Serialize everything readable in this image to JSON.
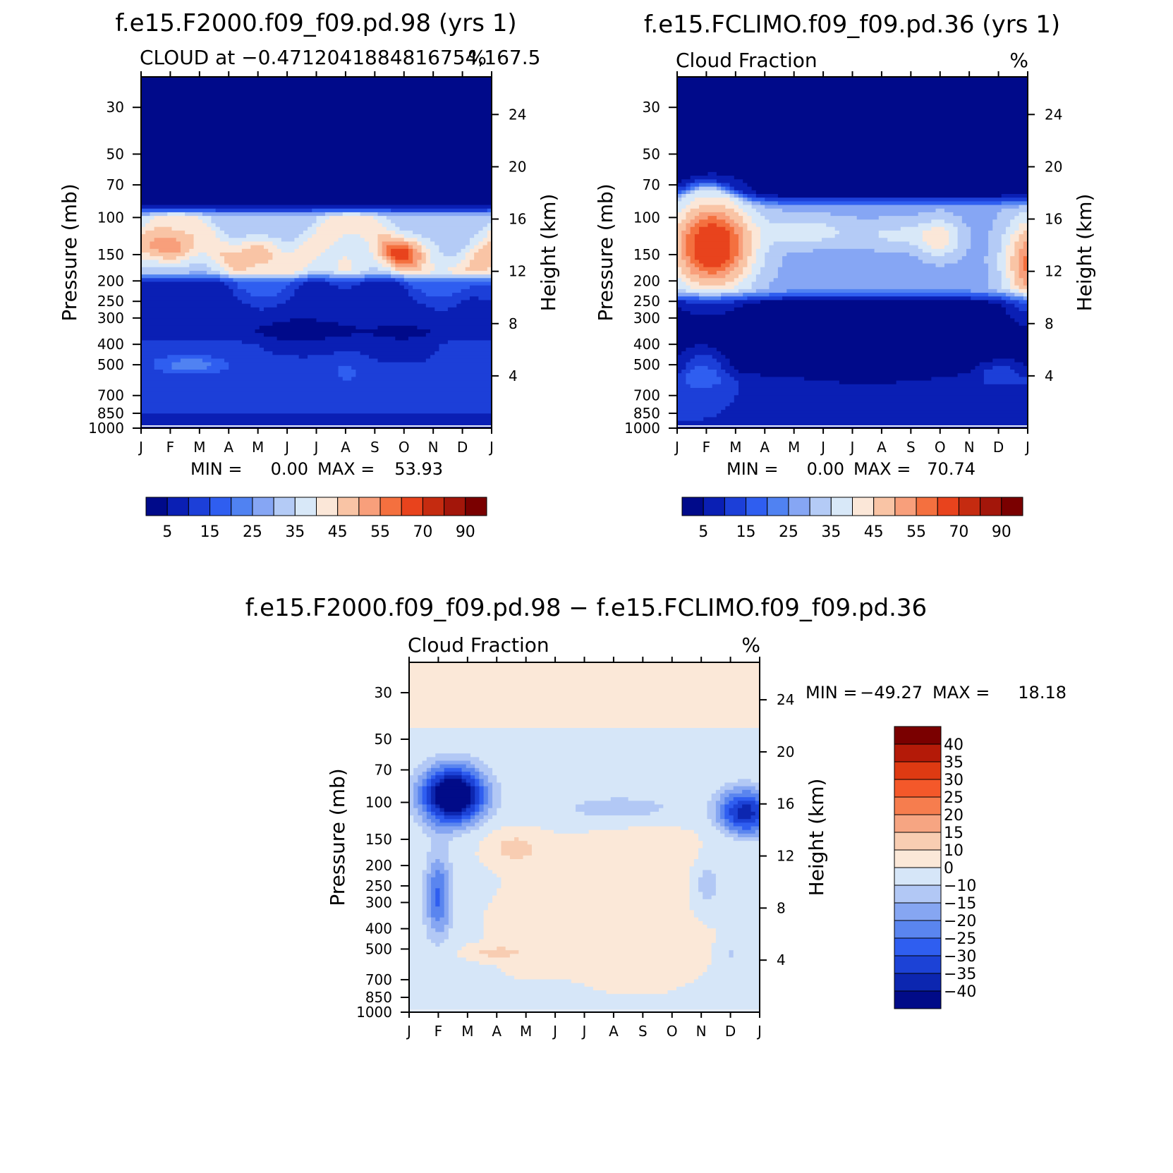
{
  "chart_data": [
    {
      "type": "heatmap",
      "title": "f.e15.F2000.f09_f09.pd.98 (yrs  1)",
      "subtitle": "CLOUD at −0.4712041884816754,167.5",
      "units": "%",
      "ylabel": "Pressure (mb)",
      "y2label": "Height (km)",
      "x": [
        "J",
        "F",
        "M",
        "A",
        "M",
        "J",
        "J",
        "A",
        "S",
        "O",
        "N",
        "D",
        "J"
      ],
      "y_ticks": [
        30,
        50,
        70,
        100,
        150,
        200,
        250,
        300,
        400,
        500,
        700,
        850,
        1000
      ],
      "y2_ticks": [
        24,
        20,
        16,
        12,
        8,
        4
      ],
      "stats": {
        "min_label": "MIN =",
        "min": "0.00",
        "max_label": "MAX =",
        "max": "53.93"
      },
      "colorbar": {
        "orientation": "horizontal",
        "labels": [
          "5",
          "15",
          "25",
          "35",
          "45",
          "55",
          "70",
          "90"
        ]
      },
      "field": "control"
    },
    {
      "type": "heatmap",
      "title": "f.e15.FCLIMO.f09_f09.pd.36 (yrs  1)",
      "subtitle": "Cloud Fraction",
      "units": "%",
      "ylabel": "Pressure (mb)",
      "y2label": "Height (km)",
      "x": [
        "J",
        "F",
        "M",
        "A",
        "M",
        "J",
        "J",
        "A",
        "S",
        "O",
        "N",
        "D",
        "J"
      ],
      "y_ticks": [
        30,
        50,
        70,
        100,
        150,
        200,
        250,
        300,
        400,
        500,
        700,
        850,
        1000
      ],
      "y2_ticks": [
        24,
        20,
        16,
        12,
        8,
        4
      ],
      "stats": {
        "min_label": "MIN =",
        "min": "0.00",
        "max_label": "MAX =",
        "max": "70.74"
      },
      "colorbar": {
        "orientation": "horizontal",
        "labels": [
          "5",
          "15",
          "25",
          "35",
          "45",
          "55",
          "70",
          "90"
        ]
      },
      "field": "climo"
    },
    {
      "type": "heatmap",
      "title": "f.e15.F2000.f09_f09.pd.98 − f.e15.FCLIMO.f09_f09.pd.36",
      "subtitle": "Cloud Fraction",
      "units": "%",
      "ylabel": "Pressure (mb)",
      "y2label": "Height (km)",
      "x": [
        "J",
        "F",
        "M",
        "A",
        "M",
        "J",
        "J",
        "A",
        "S",
        "O",
        "N",
        "D",
        "J"
      ],
      "y_ticks": [
        30,
        50,
        70,
        100,
        150,
        200,
        250,
        300,
        400,
        500,
        700,
        850,
        1000
      ],
      "y2_ticks": [
        24,
        20,
        16,
        12,
        8,
        4
      ],
      "stats": {
        "min_label": "MIN =",
        "min": "−49.27",
        "max_label": "MAX =",
        "max": "18.18"
      },
      "colorbar": {
        "orientation": "vertical",
        "labels": [
          "40",
          "35",
          "30",
          "25",
          "20",
          "15",
          "10",
          "0",
          "−10",
          "−15",
          "−20",
          "−25",
          "−30",
          "−35",
          "−40"
        ]
      },
      "field": "diff"
    }
  ],
  "palettes": {
    "abs": [
      "#000a8a",
      "#0a1fb4",
      "#1c3fd8",
      "#2f5ef0",
      "#5082f2",
      "#86a6f4",
      "#b4cbf6",
      "#d8e8f8",
      "#fbe7d8",
      "#f9c4a5",
      "#f89f7b",
      "#f4703f",
      "#e8431d",
      "#c52b10",
      "#a3160a",
      "#7a0000"
    ],
    "diff": [
      "#7a0000",
      "#b41a08",
      "#de3a12",
      "#f4582a",
      "#f67d4e",
      "#f6a582",
      "#f8cdb2",
      "#fbe8d8",
      "#d6e6f8",
      "#b2c8f5",
      "#86a6f2",
      "#5a85ef",
      "#2f5ef0",
      "#1c42d6",
      "#0c26b0",
      "#010b88"
    ]
  }
}
